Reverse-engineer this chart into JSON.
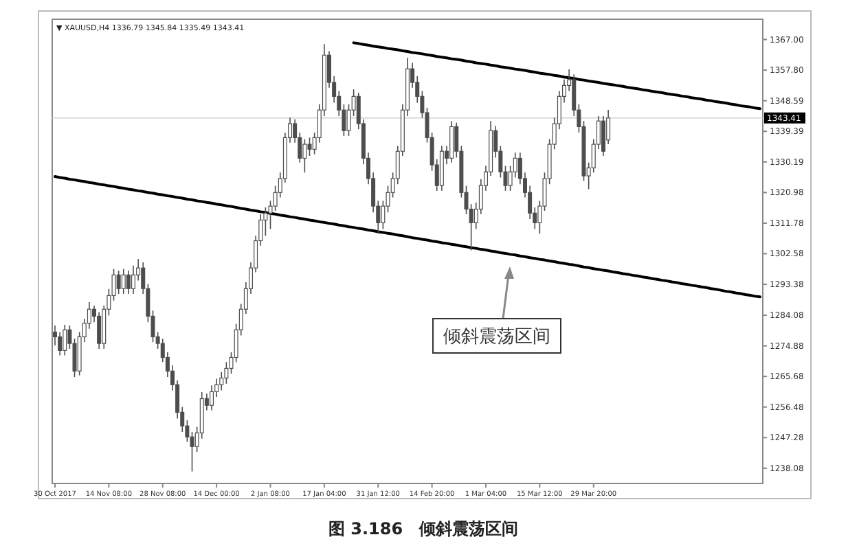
{
  "chart_data": {
    "type": "candlestick",
    "title": "▼ XAUUSD,H4 1336.79 1345.84 1335.49 1343.41",
    "categories": [
      "30 Oct 2017",
      null,
      null,
      null,
      null,
      null,
      null,
      null,
      null,
      null,
      null,
      "14 Nov 08:00",
      null,
      null,
      null,
      null,
      null,
      null,
      null,
      null,
      null,
      null,
      "28 Nov 08:00",
      null,
      null,
      null,
      null,
      null,
      null,
      null,
      null,
      null,
      null,
      "14 Dec 00:00",
      null,
      null,
      null,
      null,
      null,
      null,
      null,
      null,
      null,
      null,
      "2 Jan 08:00",
      null,
      null,
      null,
      null,
      null,
      null,
      null,
      null,
      null,
      null,
      "17 Jan 04:00",
      null,
      null,
      null,
      null,
      null,
      null,
      null,
      null,
      null,
      null,
      "31 Jan 12:00",
      null,
      null,
      null,
      null,
      null,
      null,
      null,
      null,
      null,
      null,
      "14 Feb 20:00",
      null,
      null,
      null,
      null,
      null,
      null,
      null,
      null,
      null,
      null,
      "1 Mar 04:00",
      null,
      null,
      null,
      null,
      null,
      null,
      null,
      null,
      null,
      null,
      "15 Mar 12:00",
      null,
      null,
      null,
      null,
      null,
      null,
      null,
      null,
      null,
      null,
      "29 Mar 20:00",
      null,
      null,
      null,
      null,
      null,
      null,
      null,
      null,
      null,
      null,
      null,
      null,
      null,
      null,
      null,
      null,
      null,
      null,
      null,
      null,
      null,
      null,
      null,
      null,
      null,
      null,
      null,
      null,
      null,
      null,
      null,
      null,
      null,
      null
    ],
    "ylim": [
      1233.5,
      1373.1
    ],
    "yticks": [
      {
        "value": 1367.0,
        "label": "1367.00"
      },
      {
        "value": 1357.8,
        "label": "1357.80"
      },
      {
        "value": 1348.59,
        "label": "1348.59"
      },
      {
        "value": 1339.39,
        "label": "1339.39"
      },
      {
        "value": 1330.19,
        "label": "1330.19"
      },
      {
        "value": 1320.98,
        "label": "1320.98"
      },
      {
        "value": 1311.78,
        "label": "1311.78"
      },
      {
        "value": 1302.58,
        "label": "1302.58"
      },
      {
        "value": 1293.38,
        "label": "1293.38"
      },
      {
        "value": 1284.08,
        "label": "1284.08"
      },
      {
        "value": 1274.88,
        "label": "1274.88"
      },
      {
        "value": 1265.68,
        "label": "1265.68"
      },
      {
        "value": 1256.48,
        "label": "1256.48"
      },
      {
        "value": 1247.28,
        "label": "1247.28"
      },
      {
        "value": 1238.08,
        "label": "1238.08"
      }
    ],
    "series": [
      {
        "type": "line",
        "color": "#000000",
        "values": [
          null,
          null,
          null,
          null,
          null,
          null,
          null,
          null,
          null,
          null,
          null,
          null,
          null,
          null,
          null,
          null,
          null,
          null,
          null,
          null,
          null,
          null,
          null,
          null,
          null,
          null,
          null,
          null,
          null,
          null,
          null,
          null,
          null,
          null,
          null,
          null,
          null,
          null,
          null,
          null,
          null,
          null,
          null,
          null,
          null,
          null,
          null,
          null,
          null,
          null,
          null,
          null,
          null,
          null,
          null,
          null,
          null,
          null,
          null,
          null,
          null,
          1366.0,
          1365.8,
          1365.5,
          1365.3,
          1365.0,
          1364.8,
          1364.6,
          1364.3,
          1364.1,
          1363.9,
          1363.6,
          1363.4,
          1363.1,
          1362.9,
          1362.7,
          1362.4,
          1362.2,
          1361.9,
          1361.7,
          1361.5,
          1361.2,
          1361.0,
          1360.8,
          1360.5,
          1360.3,
          1360.0,
          1359.8,
          1359.6,
          1359.3,
          1359.1,
          1358.8,
          1358.6,
          1358.4,
          1358.1,
          1357.9,
          1357.7,
          1357.4,
          1357.2,
          1356.9,
          1356.7,
          1356.5,
          1356.2,
          1356.0,
          1355.7,
          1355.5,
          1355.3,
          1355.0,
          1354.8,
          1354.5,
          1354.3,
          1354.1,
          1353.8,
          1353.6,
          1353.4,
          1353.1,
          1352.9,
          1352.6,
          1352.4,
          1352.2,
          1351.9,
          1351.7,
          1351.4,
          1351.2,
          1351.0,
          1350.7,
          1350.5,
          1350.3,
          1350.0,
          1349.8,
          1349.5,
          1349.3,
          1349.1,
          1348.8,
          1348.6,
          1348.3,
          1348.1,
          1347.9,
          1347.6,
          1347.4,
          1347.1,
          1346.9,
          1346.7,
          1346.4,
          1346.2
        ]
      },
      {
        "type": "line",
        "color": "#000000",
        "values": [
          1325.8,
          1325.5,
          1325.3,
          1325.0,
          1324.8,
          1324.5,
          1324.3,
          1324.0,
          1323.8,
          1323.5,
          1323.3,
          1323.0,
          1322.8,
          1322.5,
          1322.3,
          1322.0,
          1321.8,
          1321.5,
          1321.3,
          1321.0,
          1320.8,
          1320.5,
          1320.3,
          1320.0,
          1319.8,
          1319.5,
          1319.3,
          1319.0,
          1318.8,
          1318.5,
          1318.3,
          1318.0,
          1317.8,
          1317.5,
          1317.3,
          1317.0,
          1316.8,
          1316.5,
          1316.2,
          1316.0,
          1315.7,
          1315.5,
          1315.2,
          1315.0,
          1314.7,
          1314.5,
          1314.2,
          1314.0,
          1313.7,
          1313.5,
          1313.2,
          1313.0,
          1312.7,
          1312.5,
          1312.2,
          1312.0,
          1311.7,
          1311.5,
          1311.2,
          1311.0,
          1310.7,
          1310.5,
          1310.2,
          1310.0,
          1309.7,
          1309.5,
          1309.2,
          1309.0,
          1308.7,
          1308.5,
          1308.2,
          1308.0,
          1307.7,
          1307.4,
          1307.2,
          1306.9,
          1306.7,
          1306.4,
          1306.2,
          1305.9,
          1305.7,
          1305.4,
          1305.2,
          1304.9,
          1304.7,
          1304.4,
          1304.2,
          1303.9,
          1303.7,
          1303.4,
          1303.2,
          1302.9,
          1302.7,
          1302.4,
          1302.2,
          1301.9,
          1301.7,
          1301.4,
          1301.2,
          1300.9,
          1300.7,
          1300.4,
          1300.2,
          1299.9,
          1299.7,
          1299.4,
          1299.2,
          1298.9,
          1298.6,
          1298.4,
          1298.1,
          1297.9,
          1297.6,
          1297.4,
          1297.1,
          1296.9,
          1296.6,
          1296.4,
          1296.1,
          1295.9,
          1295.6,
          1295.4,
          1295.1,
          1294.9,
          1294.6,
          1294.4,
          1294.1,
          1293.9,
          1293.6,
          1293.4,
          1293.1,
          1292.9,
          1292.6,
          1292.4,
          1292.1,
          1291.9,
          1291.6,
          1291.3,
          1291.1,
          1290.8,
          1290.6,
          1290.3,
          1290.1,
          1289.8,
          1289.6
        ]
      },
      {
        "type": "candlestick",
        "color": "#4d4d4d",
        "ohlc": [
          [
            1279,
            1281,
            1275,
            1277.6
          ],
          [
            1277.6,
            1279,
            1272,
            1273.5
          ],
          [
            1273.5,
            1281.2,
            1272,
            1279.7
          ],
          [
            1279.7,
            1281,
            1274,
            1275.6
          ],
          [
            1275.6,
            1277,
            1265.5,
            1267.3
          ],
          [
            1267.3,
            1279,
            1266,
            1277.6
          ],
          [
            1277.6,
            1283,
            1276,
            1281.7
          ],
          [
            1281.7,
            1288,
            1280,
            1285.9
          ],
          [
            1285.9,
            1287,
            1282,
            1283.8
          ],
          [
            1283.8,
            1285,
            1274,
            1275.6
          ],
          [
            1275.6,
            1287,
            1274,
            1285.9
          ],
          [
            1285.9,
            1292,
            1284,
            1290.0
          ],
          [
            1290.0,
            1298,
            1288.5,
            1296.2
          ],
          [
            1296.2,
            1297.5,
            1290.5,
            1292.1
          ],
          [
            1292.1,
            1298,
            1290.5,
            1296.2
          ],
          [
            1296.2,
            1297.5,
            1290.5,
            1292.1
          ],
          [
            1292.1,
            1299,
            1290.5,
            1296.2
          ],
          [
            1296.2,
            1301,
            1294.5,
            1298.3
          ],
          [
            1298.3,
            1300,
            1290.5,
            1292.1
          ],
          [
            1292.1,
            1293.5,
            1282,
            1283.8
          ],
          [
            1283.8,
            1285.5,
            1276,
            1277.6
          ],
          [
            1277.6,
            1279,
            1274,
            1275.6
          ],
          [
            1275.6,
            1277,
            1270,
            1271.4
          ],
          [
            1271.4,
            1273,
            1265.5,
            1267.3
          ],
          [
            1267.3,
            1269,
            1261.5,
            1263.2
          ],
          [
            1263.2,
            1264.5,
            1253,
            1254.9
          ],
          [
            1254.9,
            1256.5,
            1249,
            1250.8
          ],
          [
            1250.8,
            1252.5,
            1246,
            1247.5
          ],
          [
            1247.5,
            1249,
            1237.1,
            1244.6
          ],
          [
            1244.6,
            1250.5,
            1243,
            1248.7
          ],
          [
            1248.7,
            1261,
            1247,
            1259.0
          ],
          [
            1259.0,
            1260.5,
            1255.5,
            1257.0
          ],
          [
            1257.0,
            1263,
            1255.5,
            1261.1
          ],
          [
            1261.1,
            1265,
            1259.5,
            1263.2
          ],
          [
            1263.2,
            1267,
            1261.5,
            1265.2
          ],
          [
            1265.2,
            1270,
            1263.5,
            1268.1
          ],
          [
            1268.1,
            1273,
            1266.5,
            1271.4
          ],
          [
            1271.4,
            1281.5,
            1270,
            1279.7
          ],
          [
            1279.7,
            1287.5,
            1278,
            1285.9
          ],
          [
            1285.9,
            1294,
            1284.5,
            1292.1
          ],
          [
            1292.1,
            1300,
            1290.5,
            1298.3
          ],
          [
            1298.3,
            1308,
            1297,
            1306.5
          ],
          [
            1306.5,
            1314.5,
            1305,
            1312.7
          ],
          [
            1312.7,
            1316.5,
            1308,
            1314.8
          ],
          [
            1314.8,
            1318.5,
            1310,
            1316.9
          ],
          [
            1316.9,
            1323,
            1315.5,
            1321.0
          ],
          [
            1321.0,
            1327,
            1319.5,
            1325.2
          ],
          [
            1325.2,
            1339,
            1324,
            1337.5
          ],
          [
            1337.5,
            1343.5,
            1336,
            1341.7
          ],
          [
            1341.7,
            1343,
            1336,
            1337.5
          ],
          [
            1337.5,
            1339,
            1330,
            1331.3
          ],
          [
            1331.3,
            1337,
            1327,
            1335.5
          ],
          [
            1335.5,
            1337.5,
            1332,
            1334.0
          ],
          [
            1334.0,
            1339,
            1332.5,
            1337.5
          ],
          [
            1337.5,
            1347.5,
            1336,
            1345.8
          ],
          [
            1345.8,
            1365.6,
            1344,
            1362.3
          ],
          [
            1362.3,
            1363.5,
            1352.5,
            1354.1
          ],
          [
            1354.1,
            1356,
            1348,
            1349.9
          ],
          [
            1349.9,
            1351.5,
            1344,
            1345.8
          ],
          [
            1345.8,
            1347.5,
            1338,
            1339.6
          ],
          [
            1339.6,
            1347.5,
            1338,
            1345.8
          ],
          [
            1345.8,
            1352,
            1344,
            1349.9
          ],
          [
            1349.9,
            1351,
            1340,
            1341.7
          ],
          [
            1341.7,
            1343,
            1329.5,
            1331.3
          ],
          [
            1331.3,
            1333,
            1323.5,
            1325.2
          ],
          [
            1325.2,
            1327,
            1315,
            1316.9
          ],
          [
            1316.9,
            1318.5,
            1308.6,
            1311.9
          ],
          [
            1311.9,
            1318.5,
            1310,
            1316.9
          ],
          [
            1316.9,
            1323,
            1315,
            1321.0
          ],
          [
            1321.0,
            1327,
            1319.5,
            1325.2
          ],
          [
            1325.2,
            1335,
            1323.5,
            1333.4
          ],
          [
            1333.4,
            1347.5,
            1332,
            1345.8
          ],
          [
            1345.8,
            1361.5,
            1344,
            1358.2
          ],
          [
            1358.2,
            1360,
            1352.5,
            1354.1
          ],
          [
            1354.1,
            1356,
            1348,
            1349.9
          ],
          [
            1349.9,
            1351.5,
            1343.5,
            1345.0
          ],
          [
            1345.0,
            1346.5,
            1336,
            1337.5
          ],
          [
            1337.5,
            1339,
            1327.5,
            1329.3
          ],
          [
            1329.3,
            1331,
            1321.5,
            1323.1
          ],
          [
            1323.1,
            1335,
            1321.5,
            1333.4
          ],
          [
            1333.4,
            1335,
            1329.5,
            1331.3
          ],
          [
            1331.3,
            1342.5,
            1330,
            1340.8
          ],
          [
            1340.8,
            1342,
            1331.5,
            1333.4
          ],
          [
            1333.4,
            1335,
            1319.5,
            1321.0
          ],
          [
            1321.0,
            1323,
            1314.5,
            1316.0
          ],
          [
            1316.0,
            1317.5,
            1303.6,
            1311.9
          ],
          [
            1311.9,
            1318,
            1310,
            1316.0
          ],
          [
            1316.0,
            1325,
            1314.5,
            1323.1
          ],
          [
            1323.1,
            1329,
            1321.5,
            1327.2
          ],
          [
            1327.2,
            1342.5,
            1326,
            1339.6
          ],
          [
            1339.6,
            1341,
            1331.5,
            1333.4
          ],
          [
            1333.4,
            1335,
            1325.5,
            1327.2
          ],
          [
            1327.2,
            1329,
            1321.5,
            1323.1
          ],
          [
            1323.1,
            1329,
            1321.5,
            1327.2
          ],
          [
            1327.2,
            1333,
            1325.5,
            1331.3
          ],
          [
            1331.3,
            1333,
            1323.5,
            1325.2
          ],
          [
            1325.2,
            1327,
            1319.5,
            1321.0
          ],
          [
            1321.0,
            1323,
            1313,
            1314.8
          ],
          [
            1314.8,
            1316.5,
            1310,
            1311.9
          ],
          [
            1311.9,
            1318.5,
            1308.6,
            1316.9
          ],
          [
            1316.9,
            1327,
            1315.5,
            1325.2
          ],
          [
            1325.2,
            1337,
            1323.5,
            1335.5
          ],
          [
            1335.5,
            1343.5,
            1334,
            1341.7
          ],
          [
            1341.7,
            1351.5,
            1340,
            1349.9
          ],
          [
            1349.9,
            1355,
            1348,
            1353.2
          ],
          [
            1353.2,
            1358,
            1351.5,
            1354.9
          ],
          [
            1354.9,
            1356.5,
            1344,
            1345.8
          ],
          [
            1345.8,
            1347.5,
            1339,
            1340.8
          ],
          [
            1340.8,
            1342.5,
            1324.5,
            1326.0
          ],
          [
            1326.0,
            1330,
            1322,
            1328.4
          ],
          [
            1328.4,
            1337,
            1327,
            1335.5
          ],
          [
            1335.5,
            1344,
            1334,
            1342.5
          ],
          [
            1342.5,
            1344,
            1332,
            1333.4
          ],
          [
            1336.79,
            1345.84,
            1335.49,
            1343.41
          ],
          null,
          null,
          null,
          null,
          null,
          null,
          null,
          null,
          null,
          null,
          null,
          null,
          null,
          null,
          null,
          null,
          null,
          null,
          null,
          null,
          null,
          null,
          null,
          null,
          null,
          null,
          null,
          null,
          null,
          null,
          null
        ]
      }
    ],
    "ref_lines": [
      {
        "axis": "y",
        "value": 1343.41,
        "label": "1343.41",
        "color": "#d0d0d0"
      }
    ],
    "annotations": [
      "倾斜震荡区间",
      "图 3.186　倾斜震荡区间"
    ]
  }
}
